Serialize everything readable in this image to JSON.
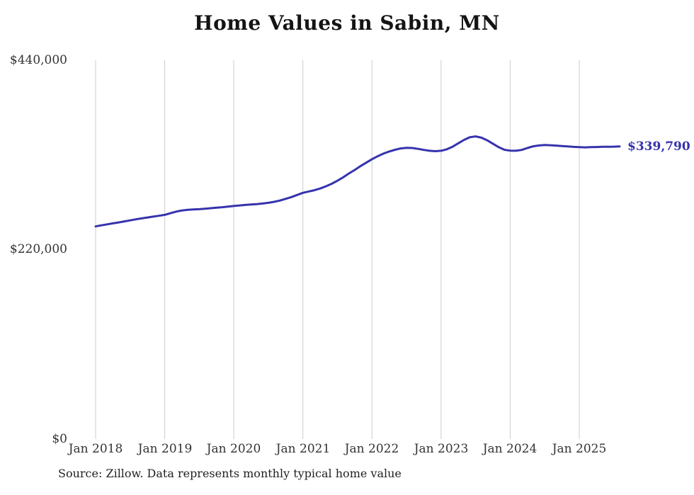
{
  "title": "Home Values in Sabin, MN",
  "source_note": "Source: Zillow. Data represents monthly typical home value",
  "colors": {
    "line": "#3633ad",
    "grid": "#cccccc",
    "tick_text": "#333333",
    "title_text": "#141414"
  },
  "chart_data": {
    "type": "line",
    "title": "Home Values in Sabin, MN",
    "xlabel": "",
    "ylabel": "",
    "ylim": [
      0,
      440000
    ],
    "grid": "vertical-only",
    "legend": "none",
    "end_label": "$339,790",
    "end_value": 339790,
    "x_start": "Jan 2018",
    "x_end": "Aug 2025",
    "x_interval": "monthly",
    "x_tick_labels": [
      "Jan 2018",
      "Jan 2019",
      "Jan 2020",
      "Jan 2021",
      "Jan 2022",
      "Jan 2023",
      "Jan 2024",
      "Jan 2025"
    ],
    "y_tick_labels": [
      "$0",
      "$220,000",
      "$440,000"
    ],
    "series": [
      {
        "name": "Typical home value",
        "values": [
          247000,
          248200,
          249400,
          250500,
          251600,
          252800,
          254000,
          255200,
          256300,
          257300,
          258300,
          259300,
          260400,
          262300,
          264200,
          265500,
          266200,
          266600,
          267000,
          267500,
          268100,
          268700,
          269300,
          270000,
          270700,
          271300,
          271900,
          272400,
          272900,
          273500,
          274400,
          275500,
          277000,
          279000,
          281000,
          283500,
          286000,
          287500,
          289000,
          291000,
          293500,
          296500,
          300000,
          304000,
          308500,
          312500,
          317000,
          321000,
          325000,
          328500,
          331500,
          334000,
          336000,
          337500,
          338200,
          338000,
          337000,
          335800,
          334800,
          334300,
          334800,
          336500,
          339500,
          343500,
          347500,
          350500,
          351500,
          350000,
          347000,
          343000,
          339000,
          336000,
          335000,
          334800,
          335800,
          338000,
          340000,
          341000,
          341500,
          341200,
          340800,
          340300,
          339800,
          339300,
          339000,
          338800,
          339000,
          339200,
          339400,
          339500,
          339600,
          339790
        ]
      }
    ]
  }
}
